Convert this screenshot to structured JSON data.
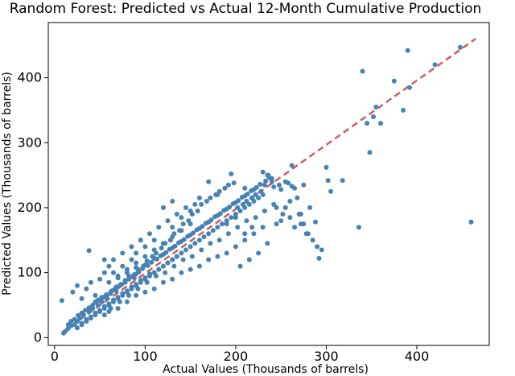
{
  "chart_data": {
    "type": "scatter",
    "title": "Random Forest: Predicted vs Actual 12-Month Cumulative Production",
    "xlabel": "Actual Values (Thousands of barrels)",
    "ylabel": "Predicted Values (Thousands of barrels)",
    "xlim": [
      -7,
      480
    ],
    "ylim": [
      -12,
      485
    ],
    "xticks": [
      0,
      100,
      200,
      300,
      400
    ],
    "yticks": [
      0,
      100,
      200,
      300,
      400
    ],
    "grid": false,
    "point_color": "#4682b4",
    "reference_line": {
      "style": "dashed",
      "color": "#cd5c5c",
      "from": [
        8,
        8
      ],
      "to": [
        465,
        460
      ]
    },
    "points": [
      [
        8,
        57
      ],
      [
        10,
        7
      ],
      [
        12,
        10
      ],
      [
        15,
        14
      ],
      [
        18,
        18
      ],
      [
        22,
        20
      ],
      [
        25,
        25
      ],
      [
        28,
        30
      ],
      [
        30,
        22
      ],
      [
        32,
        35
      ],
      [
        35,
        28
      ],
      [
        38,
        40
      ],
      [
        40,
        32
      ],
      [
        42,
        45
      ],
      [
        45,
        38
      ],
      [
        48,
        50
      ],
      [
        50,
        42
      ],
      [
        52,
        55
      ],
      [
        55,
        48
      ],
      [
        58,
        60
      ],
      [
        60,
        52
      ],
      [
        62,
        68
      ],
      [
        65,
        58
      ],
      [
        68,
        72
      ],
      [
        70,
        62
      ],
      [
        72,
        80
      ],
      [
        75,
        68
      ],
      [
        78,
        85
      ],
      [
        80,
        72
      ],
      [
        82,
        95
      ],
      [
        85,
        78
      ],
      [
        88,
        92
      ],
      [
        90,
        82
      ],
      [
        92,
        105
      ],
      [
        95,
        88
      ],
      [
        98,
        110
      ],
      [
        100,
        92
      ],
      [
        102,
        118
      ],
      [
        105,
        98
      ],
      [
        108,
        125
      ],
      [
        110,
        100
      ],
      [
        112,
        130
      ],
      [
        115,
        105
      ],
      [
        118,
        138
      ],
      [
        120,
        110
      ],
      [
        122,
        145
      ],
      [
        125,
        115
      ],
      [
        128,
        150
      ],
      [
        130,
        120
      ],
      [
        132,
        160
      ],
      [
        135,
        125
      ],
      [
        138,
        165
      ],
      [
        140,
        130
      ],
      [
        142,
        175
      ],
      [
        145,
        135
      ],
      [
        148,
        180
      ],
      [
        150,
        140
      ],
      [
        152,
        190
      ],
      [
        155,
        145
      ],
      [
        158,
        195
      ],
      [
        160,
        150
      ],
      [
        162,
        205
      ],
      [
        165,
        155
      ],
      [
        168,
        210
      ],
      [
        170,
        160
      ],
      [
        172,
        215
      ],
      [
        175,
        165
      ],
      [
        178,
        220
      ],
      [
        180,
        170
      ],
      [
        182,
        225
      ],
      [
        185,
        175
      ],
      [
        188,
        230
      ],
      [
        190,
        180
      ],
      [
        192,
        235
      ],
      [
        195,
        185
      ],
      [
        198,
        238
      ],
      [
        200,
        190
      ],
      [
        202,
        200
      ],
      [
        205,
        195
      ],
      [
        208,
        205
      ],
      [
        210,
        200
      ],
      [
        212,
        210
      ],
      [
        215,
        205
      ],
      [
        218,
        215
      ],
      [
        220,
        210
      ],
      [
        222,
        220
      ],
      [
        225,
        215
      ],
      [
        228,
        225
      ],
      [
        230,
        220
      ],
      [
        232,
        235
      ],
      [
        235,
        250
      ],
      [
        240,
        240
      ],
      [
        20,
        70
      ],
      [
        25,
        80
      ],
      [
        30,
        60
      ],
      [
        35,
        75
      ],
      [
        40,
        85
      ],
      [
        45,
        65
      ],
      [
        50,
        90
      ],
      [
        55,
        100
      ],
      [
        60,
        110
      ],
      [
        65,
        120
      ],
      [
        70,
        95
      ],
      [
        75,
        130
      ],
      [
        80,
        105
      ],
      [
        85,
        140
      ],
      [
        90,
        115
      ],
      [
        95,
        150
      ],
      [
        100,
        125
      ],
      [
        105,
        160
      ],
      [
        110,
        135
      ],
      [
        115,
        170
      ],
      [
        120,
        145
      ],
      [
        125,
        180
      ],
      [
        130,
        155
      ],
      [
        135,
        190
      ],
      [
        140,
        165
      ],
      [
        145,
        200
      ],
      [
        150,
        175
      ],
      [
        155,
        205
      ],
      [
        38,
        134
      ],
      [
        55,
        120
      ],
      [
        60,
        40
      ],
      [
        70,
        45
      ],
      [
        80,
        55
      ],
      [
        90,
        65
      ],
      [
        100,
        70
      ],
      [
        110,
        75
      ],
      [
        120,
        85
      ],
      [
        130,
        90
      ],
      [
        140,
        100
      ],
      [
        150,
        105
      ],
      [
        160,
        110
      ],
      [
        170,
        120
      ],
      [
        180,
        125
      ],
      [
        190,
        130
      ],
      [
        200,
        140
      ],
      [
        210,
        150
      ],
      [
        220,
        160
      ],
      [
        230,
        170
      ],
      [
        205,
        110
      ],
      [
        215,
        120
      ],
      [
        225,
        130
      ],
      [
        235,
        145
      ],
      [
        245,
        175
      ],
      [
        250,
        180
      ],
      [
        255,
        200
      ],
      [
        260,
        210
      ],
      [
        265,
        230
      ],
      [
        270,
        190
      ],
      [
        275,
        175
      ],
      [
        280,
        160
      ],
      [
        120,
        200
      ],
      [
        130,
        210
      ],
      [
        140,
        185
      ],
      [
        150,
        195
      ],
      [
        160,
        215
      ],
      [
        170,
        240
      ],
      [
        180,
        220
      ],
      [
        190,
        175
      ],
      [
        200,
        185
      ],
      [
        210,
        230
      ],
      [
        130,
        170
      ],
      [
        110,
        150
      ],
      [
        100,
        140
      ],
      [
        90,
        130
      ],
      [
        95,
        150
      ],
      [
        85,
        120
      ],
      [
        75,
        110
      ],
      [
        65,
        100
      ],
      [
        45,
        55
      ],
      [
        48,
        58
      ],
      [
        52,
        62
      ],
      [
        57,
        66
      ],
      [
        63,
        72
      ],
      [
        68,
        78
      ],
      [
        73,
        82
      ],
      [
        78,
        88
      ],
      [
        83,
        93
      ],
      [
        88,
        97
      ],
      [
        93,
        101
      ],
      [
        97,
        106
      ],
      [
        103,
        111
      ],
      [
        107,
        116
      ],
      [
        113,
        121
      ],
      [
        117,
        126
      ],
      [
        123,
        131
      ],
      [
        127,
        136
      ],
      [
        133,
        141
      ],
      [
        137,
        146
      ],
      [
        143,
        151
      ],
      [
        147,
        156
      ],
      [
        153,
        161
      ],
      [
        157,
        166
      ],
      [
        163,
        171
      ],
      [
        167,
        176
      ],
      [
        173,
        181
      ],
      [
        177,
        186
      ],
      [
        183,
        191
      ],
      [
        187,
        196
      ],
      [
        193,
        201
      ],
      [
        197,
        206
      ],
      [
        203,
        211
      ],
      [
        207,
        216
      ],
      [
        213,
        221
      ],
      [
        217,
        226
      ],
      [
        223,
        231
      ],
      [
        227,
        236
      ],
      [
        233,
        241
      ],
      [
        237,
        246
      ],
      [
        55,
        35
      ],
      [
        62,
        45
      ],
      [
        72,
        55
      ],
      [
        82,
        65
      ],
      [
        92,
        75
      ],
      [
        102,
        85
      ],
      [
        112,
        95
      ],
      [
        122,
        100
      ],
      [
        132,
        110
      ],
      [
        142,
        120
      ],
      [
        152,
        125
      ],
      [
        162,
        135
      ],
      [
        172,
        145
      ],
      [
        182,
        150
      ],
      [
        192,
        160
      ],
      [
        202,
        170
      ],
      [
        212,
        180
      ],
      [
        222,
        185
      ],
      [
        232,
        195
      ],
      [
        242,
        205
      ],
      [
        195,
        252
      ],
      [
        230,
        255
      ],
      [
        236,
        250
      ],
      [
        240,
        245
      ],
      [
        242,
        232
      ],
      [
        248,
        235
      ],
      [
        250,
        228
      ],
      [
        255,
        240
      ],
      [
        258,
        238
      ],
      [
        262,
        233
      ],
      [
        245,
        200
      ],
      [
        252,
        190
      ],
      [
        260,
        185
      ],
      [
        265,
        170
      ],
      [
        272,
        175
      ],
      [
        278,
        160
      ],
      [
        285,
        150
      ],
      [
        290,
        140
      ],
      [
        210,
        160
      ],
      [
        218,
        170
      ],
      [
        262,
        265
      ],
      [
        268,
        215
      ],
      [
        272,
        190
      ],
      [
        275,
        235
      ],
      [
        282,
        200
      ],
      [
        288,
        178
      ],
      [
        292,
        122
      ],
      [
        295,
        135
      ],
      [
        300,
        262
      ],
      [
        302,
        242
      ],
      [
        305,
        225
      ],
      [
        318,
        242
      ],
      [
        336,
        170
      ],
      [
        340,
        410
      ],
      [
        345,
        330
      ],
      [
        348,
        285
      ],
      [
        352,
        340
      ],
      [
        355,
        355
      ],
      [
        360,
        330
      ],
      [
        375,
        395
      ],
      [
        385,
        350
      ],
      [
        390,
        442
      ],
      [
        392,
        385
      ],
      [
        420,
        420
      ],
      [
        448,
        447
      ],
      [
        460,
        178
      ],
      [
        60,
        85
      ],
      [
        70,
        92
      ],
      [
        80,
        100
      ],
      [
        90,
        108
      ],
      [
        100,
        112
      ],
      [
        110,
        122
      ],
      [
        120,
        128
      ],
      [
        130,
        138
      ],
      [
        140,
        148
      ],
      [
        150,
        158
      ],
      [
        160,
        168
      ],
      [
        170,
        178
      ],
      [
        180,
        188
      ],
      [
        190,
        198
      ],
      [
        200,
        208
      ],
      [
        210,
        218
      ],
      [
        220,
        228
      ],
      [
        15,
        20
      ],
      [
        18,
        25
      ],
      [
        22,
        28
      ],
      [
        26,
        34
      ],
      [
        30,
        38
      ],
      [
        34,
        42
      ],
      [
        38,
        46
      ],
      [
        42,
        50
      ],
      [
        46,
        54
      ],
      [
        50,
        58
      ],
      [
        54,
        62
      ],
      [
        58,
        66
      ],
      [
        62,
        70
      ],
      [
        66,
        74
      ],
      [
        70,
        78
      ],
      [
        74,
        82
      ],
      [
        78,
        86
      ],
      [
        82,
        90
      ],
      [
        86,
        94
      ],
      [
        90,
        98
      ],
      [
        25,
        15
      ],
      [
        30,
        20
      ],
      [
        35,
        25
      ],
      [
        40,
        30
      ],
      [
        45,
        35
      ],
      [
        50,
        40
      ],
      [
        55,
        45
      ],
      [
        60,
        50
      ],
      [
        65,
        55
      ],
      [
        70,
        60
      ],
      [
        75,
        65
      ],
      [
        80,
        70
      ],
      [
        85,
        75
      ],
      [
        90,
        80
      ],
      [
        95,
        85
      ],
      [
        100,
        90
      ],
      [
        105,
        95
      ],
      [
        110,
        100
      ],
      [
        115,
        105
      ],
      [
        120,
        110
      ],
      [
        125,
        115
      ],
      [
        130,
        120
      ],
      [
        135,
        125
      ]
    ]
  }
}
